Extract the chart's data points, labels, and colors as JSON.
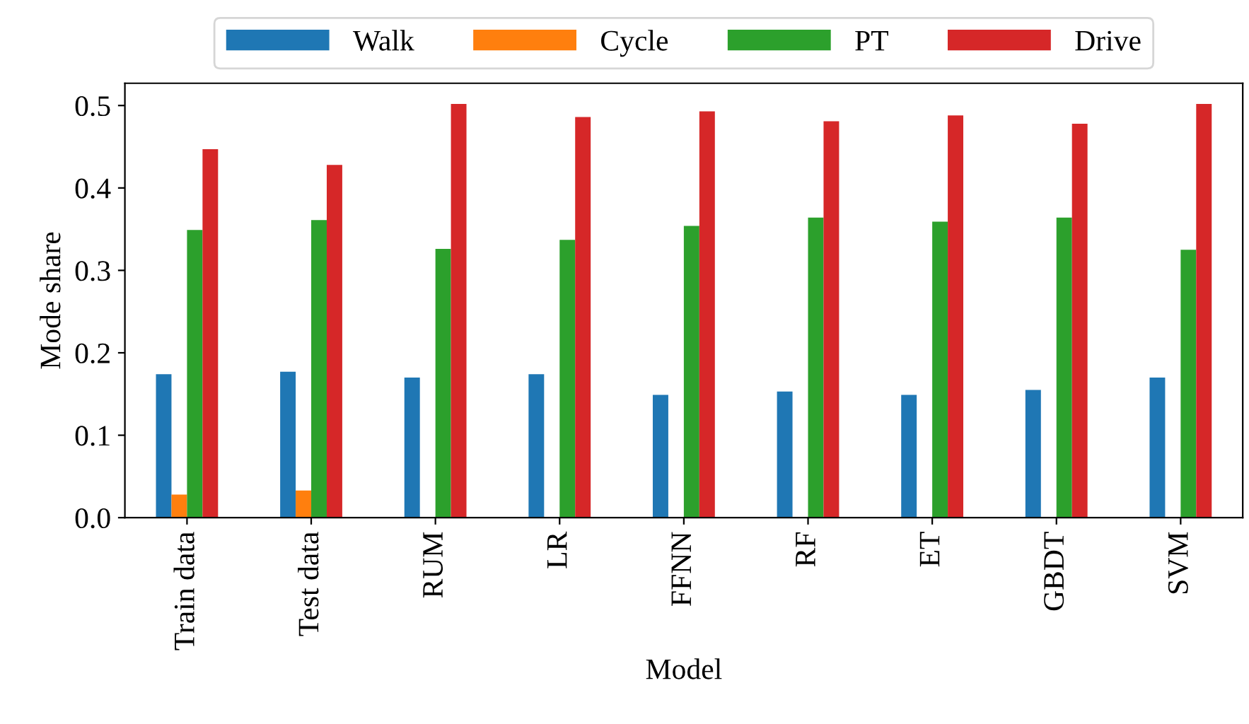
{
  "chart_data": {
    "type": "bar",
    "xlabel": "Model",
    "ylabel": "Mode share",
    "categories": [
      "Train data",
      "Test data",
      "RUM",
      "LR",
      "FFNN",
      "RF",
      "ET",
      "GBDT",
      "SVM"
    ],
    "series": [
      {
        "name": "Walk",
        "color": "#1f77b4",
        "values": [
          0.174,
          0.177,
          0.17,
          0.174,
          0.149,
          0.153,
          0.149,
          0.155,
          0.17
        ]
      },
      {
        "name": "Cycle",
        "color": "#ff7f0e",
        "values": [
          0.028,
          0.033,
          0,
          0,
          0,
          0,
          0,
          0,
          0
        ]
      },
      {
        "name": "PT",
        "color": "#2ca02c",
        "values": [
          0.349,
          0.361,
          0.326,
          0.337,
          0.354,
          0.364,
          0.359,
          0.364,
          0.325
        ]
      },
      {
        "name": "Drive",
        "color": "#d62728",
        "values": [
          0.447,
          0.428,
          0.502,
          0.486,
          0.493,
          0.481,
          0.488,
          0.478,
          0.502
        ]
      }
    ],
    "ylim": [
      0,
      0.527
    ],
    "yticks": [
      {
        "value": 0,
        "label": "0.0"
      },
      0.1,
      0.2,
      0.3,
      0.4,
      0.5
    ],
    "grid": false,
    "legend": "top"
  }
}
